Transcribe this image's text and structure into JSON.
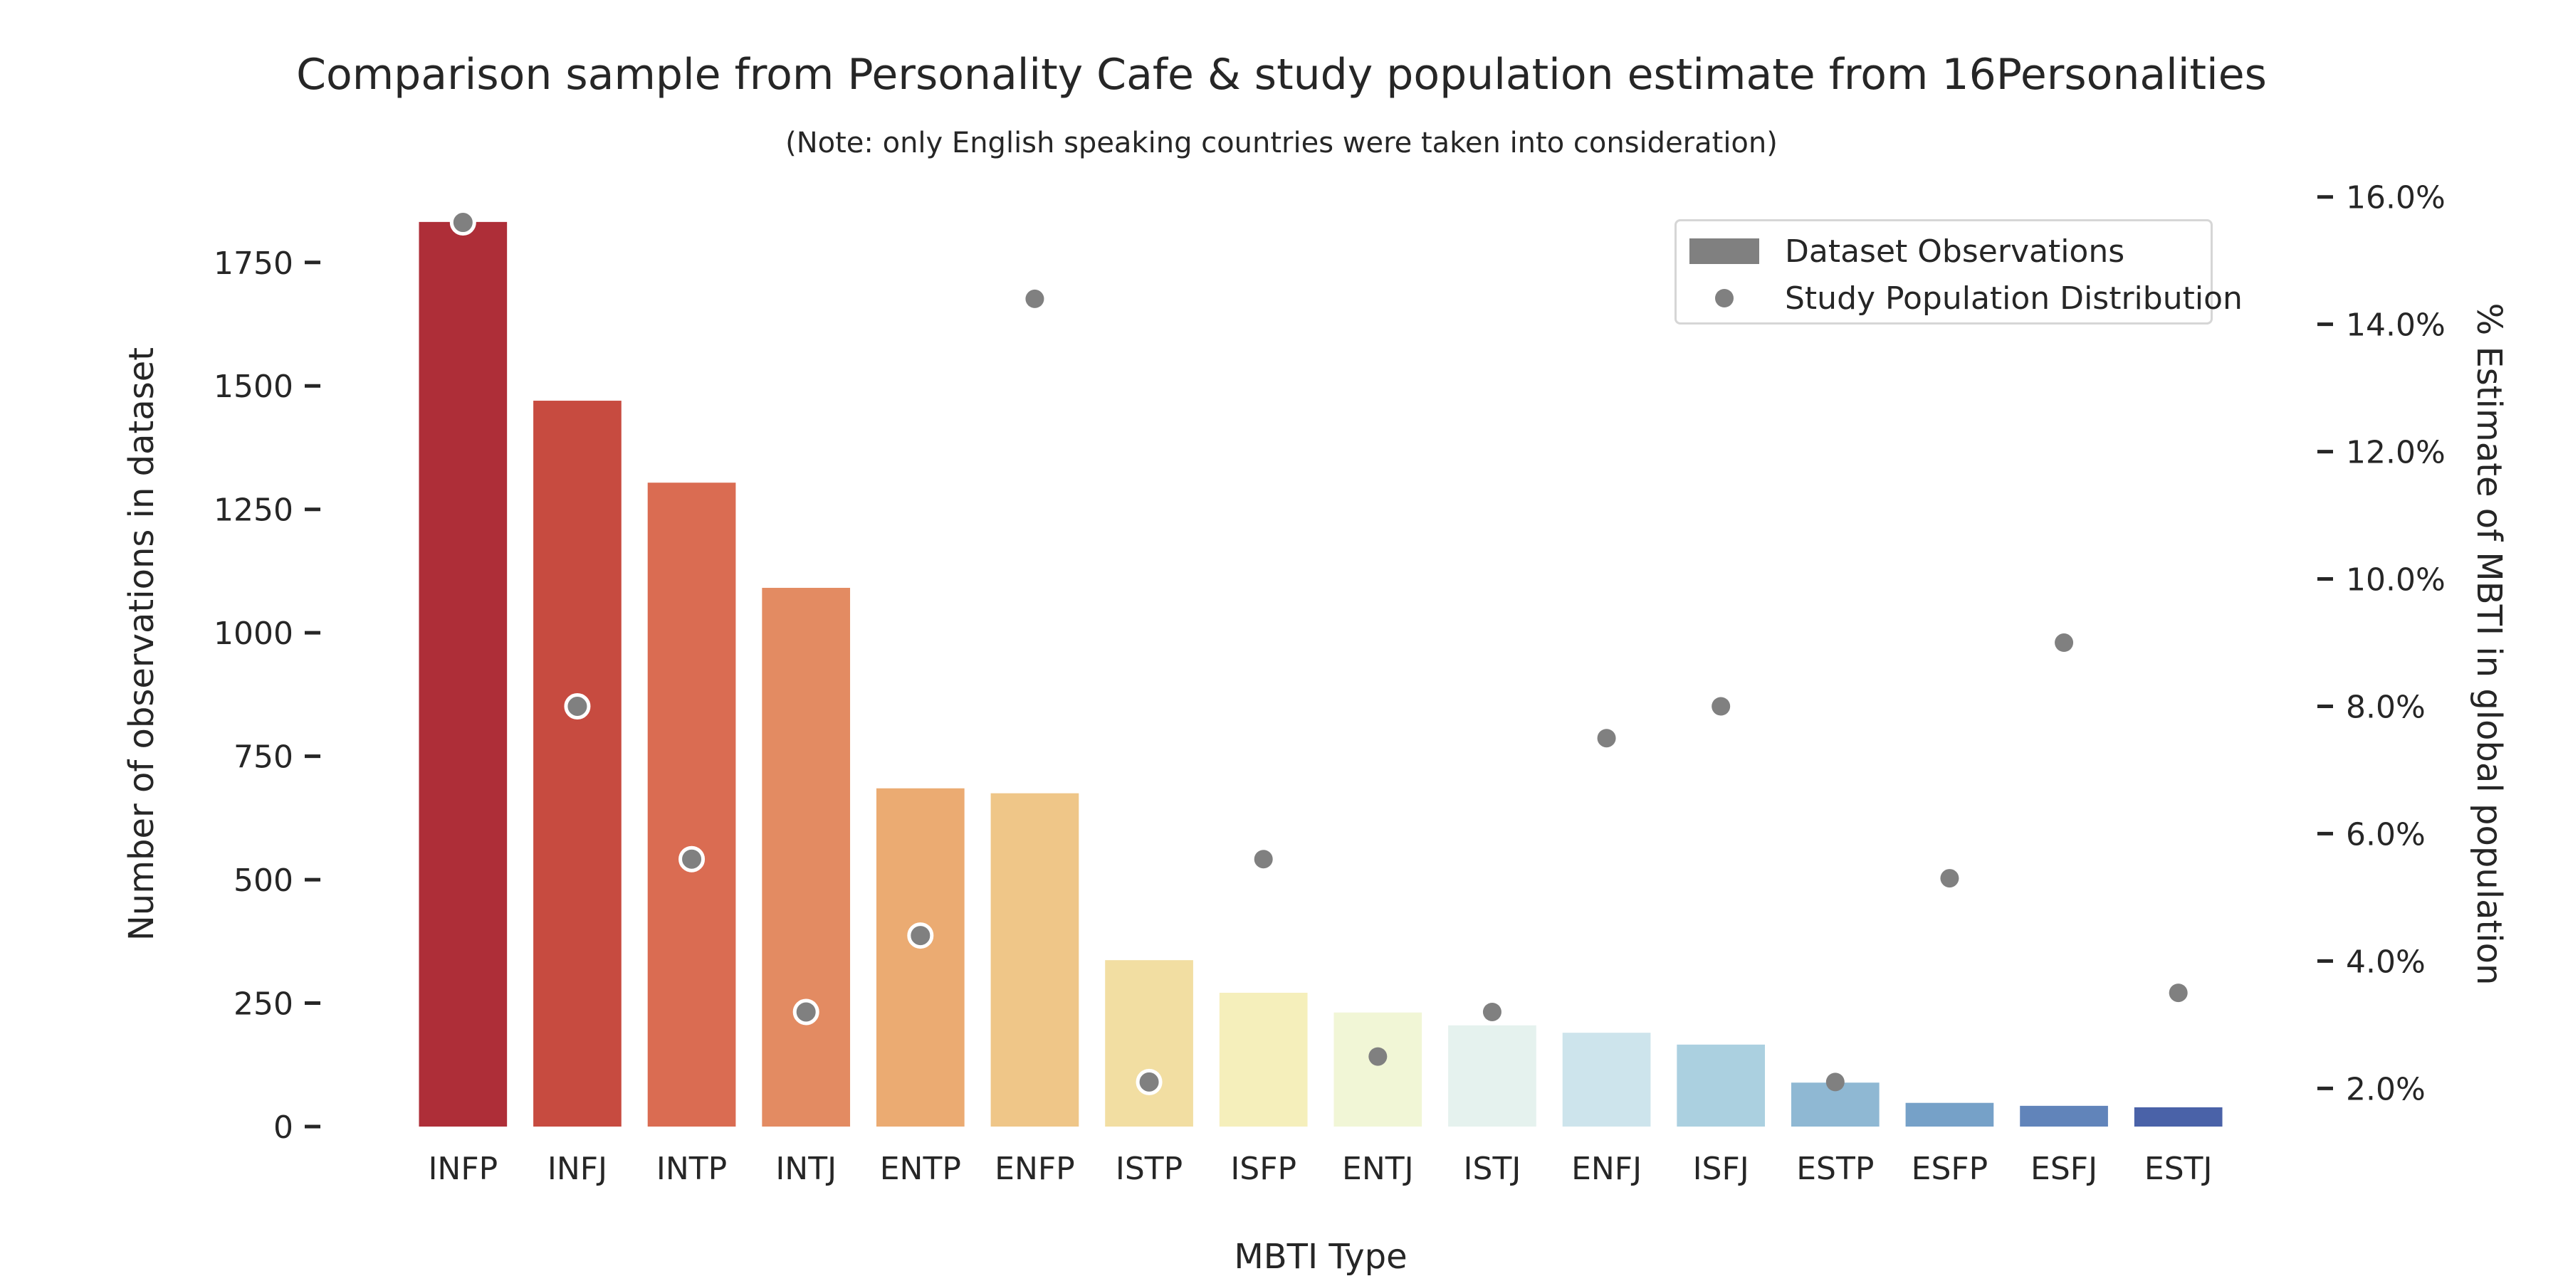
{
  "chart_data": {
    "type": "bar",
    "title": "Comparison sample from Personality Cafe & study population estimate from 16Personalities",
    "subtitle": "(Note: only English speaking countries were taken into consideration)",
    "xlabel": "MBTI Type",
    "ylabel": "Number of observations in dataset",
    "y2label": "% Estimate of MBTI in global population",
    "categories": [
      "INFP",
      "INFJ",
      "INTP",
      "INTJ",
      "ENTP",
      "ENFP",
      "ISTP",
      "ISFP",
      "ENTJ",
      "ISTJ",
      "ENFJ",
      "ISFJ",
      "ESTP",
      "ESFP",
      "ESFJ",
      "ESTJ"
    ],
    "series": [
      {
        "name": "Dataset Observations",
        "kind": "bar",
        "axis": "left",
        "values": [
          1832,
          1470,
          1304,
          1091,
          685,
          675,
          337,
          271,
          231,
          205,
          190,
          166,
          89,
          48,
          42,
          39
        ],
        "colors": [
          "#ae2e38",
          "#c74b40",
          "#da6c52",
          "#e38b62",
          "#ebab72",
          "#efc688",
          "#f2dea2",
          "#f5efbb",
          "#f1f6d6",
          "#e5f2ee",
          "#cde4ec",
          "#abd0e0",
          "#8fb8d3",
          "#76a1c8",
          "#6184ba",
          "#4a62a8"
        ]
      },
      {
        "name": "Study Population Distribution",
        "kind": "scatter",
        "axis": "right",
        "color": "#808080",
        "values": [
          15.6,
          8.0,
          5.6,
          3.2,
          4.4,
          14.4,
          2.1,
          5.6,
          2.5,
          3.2,
          7.5,
          8.0,
          2.1,
          5.3,
          9.0,
          3.5
        ],
        "outlined": [
          true,
          true,
          true,
          true,
          true,
          false,
          true,
          false,
          false,
          false,
          false,
          false,
          false,
          false,
          false,
          false
        ]
      }
    ],
    "yticks": [
      0,
      250,
      500,
      750,
      1000,
      1250,
      1500,
      1750
    ],
    "ylim": [
      0,
      1950
    ],
    "y2ticks": [
      "2.0%",
      "4.0%",
      "6.0%",
      "8.0%",
      "10.0%",
      "12.0%",
      "14.0%",
      "16.0%"
    ],
    "y2lim": [
      1.4,
      16.5
    ],
    "legend": {
      "position": "top-right",
      "labels": [
        "Dataset Observations",
        "Study Population Distribution"
      ]
    },
    "grid": false
  }
}
